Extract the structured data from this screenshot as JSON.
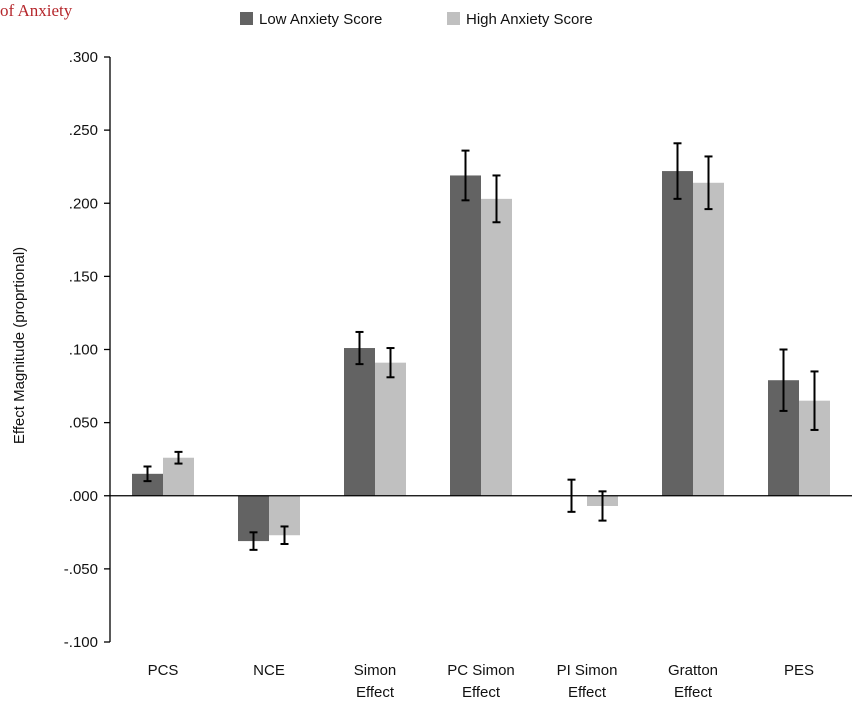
{
  "cut_title": "of Anxiety",
  "chart_data": {
    "type": "bar",
    "ylabel": "Effect Magnitude (proprtional)",
    "xlabel": "",
    "ylim": [
      -0.1,
      0.3
    ],
    "yticks": [
      ".300",
      ".250",
      ".200",
      ".150",
      ".100",
      ".050",
      ".000",
      "-.050",
      "-.100"
    ],
    "ytick_values": [
      0.3,
      0.25,
      0.2,
      0.15,
      0.1,
      0.05,
      0.0,
      -0.05,
      -0.1
    ],
    "grid": false,
    "legend_position": "top",
    "categories": [
      [
        "PCS"
      ],
      [
        "NCE"
      ],
      [
        "Simon",
        "Effect"
      ],
      [
        "PC Simon",
        "Effect"
      ],
      [
        "PI Simon",
        "Effect"
      ],
      [
        "Gratton",
        "Effect"
      ],
      [
        "PES"
      ]
    ],
    "series": [
      {
        "name": "Low Anxiety Score",
        "color": "#636363",
        "values": [
          0.015,
          -0.031,
          0.101,
          0.219,
          0.0,
          0.222,
          0.079
        ],
        "error": [
          0.005,
          0.006,
          0.011,
          0.017,
          0.011,
          0.019,
          0.021
        ]
      },
      {
        "name": "High Anxiety Score",
        "color": "#c0c0c0",
        "values": [
          0.026,
          -0.027,
          0.091,
          0.203,
          -0.007,
          0.214,
          0.065
        ],
        "error": [
          0.004,
          0.006,
          0.01,
          0.016,
          0.01,
          0.018,
          0.02
        ]
      }
    ]
  }
}
